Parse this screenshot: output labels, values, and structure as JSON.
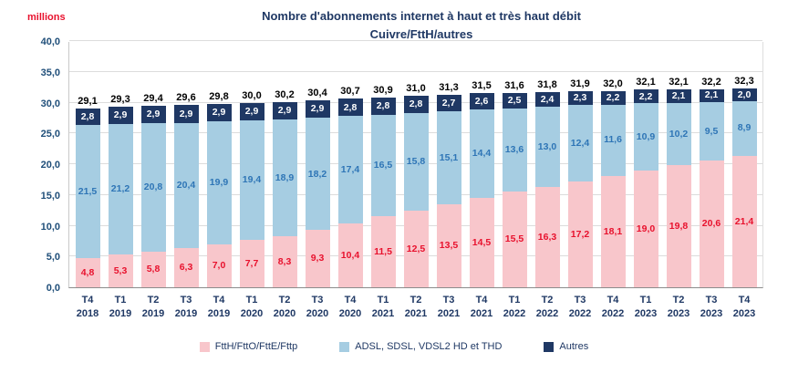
{
  "chart_data": {
    "type": "bar",
    "variant": "stacked",
    "title_line1": "Nombre d'abonnements internet à haut et très haut débit",
    "title_line2": "Cuivre/FttH/autres",
    "y_axis_unit": "millions",
    "ylim": [
      0,
      40
    ],
    "ytick_step": 5,
    "grid": true,
    "legend_position": "bottom",
    "categories": [
      {
        "quarter": "T4",
        "year": "2018"
      },
      {
        "quarter": "T1",
        "year": "2019"
      },
      {
        "quarter": "T2",
        "year": "2019"
      },
      {
        "quarter": "T3",
        "year": "2019"
      },
      {
        "quarter": "T4",
        "year": "2019"
      },
      {
        "quarter": "T1",
        "year": "2020"
      },
      {
        "quarter": "T2",
        "year": "2020"
      },
      {
        "quarter": "T3",
        "year": "2020"
      },
      {
        "quarter": "T4",
        "year": "2020"
      },
      {
        "quarter": "T1",
        "year": "2021"
      },
      {
        "quarter": "T2",
        "year": "2021"
      },
      {
        "quarter": "T3",
        "year": "2021"
      },
      {
        "quarter": "T4",
        "year": "2021"
      },
      {
        "quarter": "T1",
        "year": "2022"
      },
      {
        "quarter": "T2",
        "year": "2022"
      },
      {
        "quarter": "T3",
        "year": "2022"
      },
      {
        "quarter": "T4",
        "year": "2022"
      },
      {
        "quarter": "T1",
        "year": "2023"
      },
      {
        "quarter": "T2",
        "year": "2023"
      },
      {
        "quarter": "T3",
        "year": "2023"
      },
      {
        "quarter": "T4",
        "year": "2023"
      }
    ],
    "series": [
      {
        "name": "FttH/FttO/FttE/Fttp",
        "fill_color": "#F8C6CB",
        "label_color": "#E8112D",
        "values": [
          4.8,
          5.3,
          5.8,
          6.3,
          7.0,
          7.7,
          8.3,
          9.3,
          10.4,
          11.5,
          12.5,
          13.5,
          14.5,
          15.5,
          16.3,
          17.2,
          18.1,
          19.0,
          19.8,
          20.6,
          21.4
        ]
      },
      {
        "name": "ADSL, SDSL, VDSL2 HD et THD",
        "fill_color": "#A6CDE2",
        "label_color": "#2E75B6",
        "values": [
          21.5,
          21.2,
          20.8,
          20.4,
          19.9,
          19.4,
          18.9,
          18.2,
          17.4,
          16.5,
          15.8,
          15.1,
          14.4,
          13.6,
          13.0,
          12.4,
          11.6,
          10.9,
          10.2,
          9.5,
          8.9
        ]
      },
      {
        "name": "Autres",
        "fill_color": "#1F3864",
        "label_color": "#FFFFFF",
        "values": [
          2.8,
          2.9,
          2.9,
          2.9,
          2.9,
          2.9,
          2.9,
          2.9,
          2.8,
          2.8,
          2.8,
          2.7,
          2.6,
          2.5,
          2.4,
          2.3,
          2.2,
          2.2,
          2.1,
          2.1,
          2.0
        ]
      }
    ],
    "totals": [
      29.1,
      29.3,
      29.4,
      29.6,
      29.8,
      30.0,
      30.2,
      30.4,
      30.7,
      30.9,
      31.0,
      31.3,
      31.5,
      31.6,
      31.8,
      31.9,
      32.0,
      32.1,
      32.1,
      32.2,
      32.3
    ],
    "colors": {
      "title": "#1F3864",
      "axis_label": "#1F4E79",
      "x_label": "#1F3864",
      "unit_label": "#E8112D",
      "total_label": "#000000",
      "legend_text": "#1F3864",
      "gridline": "#DCDCDC"
    }
  }
}
